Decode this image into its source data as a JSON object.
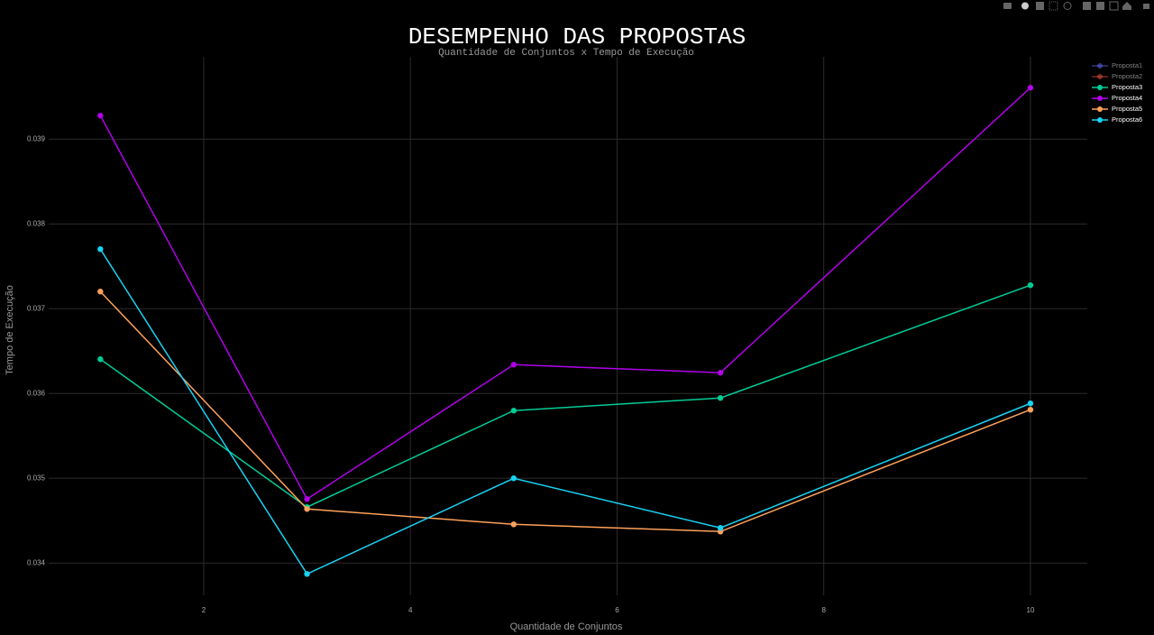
{
  "chart_data": {
    "type": "line",
    "title": "DESEMPENHO DAS PROPOSTAS",
    "subtitle": "Quantidade de Conjuntos x Tempo de Execução",
    "x_label": "Quantidade de Conjuntos",
    "y_label": "Tempo de Execução",
    "x": [
      1,
      3,
      5,
      7,
      10
    ],
    "xlim": [
      0.5,
      10.55
    ],
    "xticks": [
      2,
      4,
      6,
      8,
      10
    ],
    "ylim": [
      0.03362,
      0.03997
    ],
    "yticks": [
      0.034,
      0.035,
      0.036,
      0.037,
      0.038,
      0.039
    ],
    "grid": true,
    "legend": "right",
    "series": [
      {
        "name": "Proposta1",
        "color": "#636efa",
        "visible": false,
        "values": [
          null,
          null,
          null,
          null,
          null
        ]
      },
      {
        "name": "Proposta2",
        "color": "#ef553b",
        "visible": false,
        "values": [
          null,
          null,
          null,
          null,
          null
        ]
      },
      {
        "name": "Proposta3",
        "color": "#00cc96",
        "visible": true,
        "values": [
          0.036404,
          0.03466,
          0.035798,
          0.035947,
          0.037277
        ]
      },
      {
        "name": "Proposta4",
        "color": "#b100e8",
        "visible": true,
        "values": [
          0.039277,
          0.034755,
          0.03634,
          0.036245,
          0.039606
        ]
      },
      {
        "name": "Proposta5",
        "color": "#ffa15a",
        "visible": true,
        "values": [
          0.037202,
          0.034638,
          0.034457,
          0.034372,
          0.035809
        ]
      },
      {
        "name": "Proposta6",
        "color": "#19d3f3",
        "visible": true,
        "values": [
          0.037702,
          0.033872,
          0.035,
          0.034415,
          0.035883
        ]
      }
    ]
  }
}
